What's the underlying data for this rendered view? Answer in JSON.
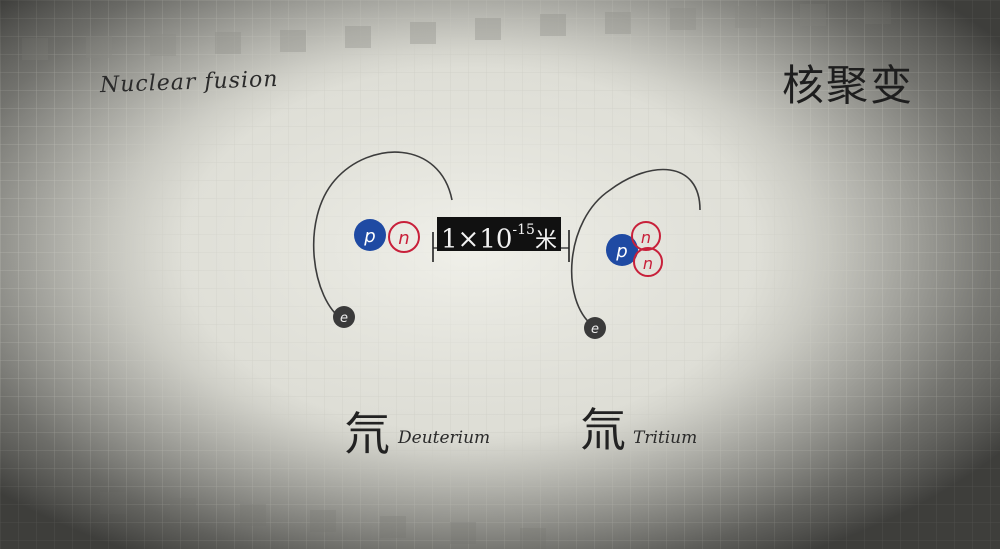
{
  "title": {
    "english": "Nuclear fusion",
    "chinese": "核聚变"
  },
  "distance": {
    "mantissa": "1×10",
    "exponent": "-15",
    "unit": "米"
  },
  "atoms": [
    {
      "name_zh": "氘",
      "name_en": "Deuterium",
      "particles": [
        "p",
        "n",
        "e"
      ]
    },
    {
      "name_zh": "氚",
      "name_en": "Tritium",
      "particles": [
        "p",
        "n",
        "n",
        "e"
      ]
    }
  ],
  "colors": {
    "proton": "#1f4aa3",
    "neutron": "#c8203a",
    "electron": "#3a3a3a",
    "ink": "#2a2a2a"
  }
}
